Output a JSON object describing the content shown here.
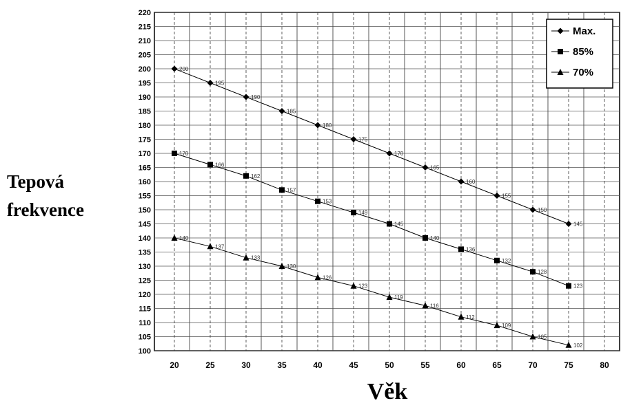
{
  "chart_data": {
    "type": "line",
    "title": "",
    "xlabel": "Věk",
    "ylabel": [
      "Tepová",
      "frekvence"
    ],
    "x": [
      20,
      25,
      30,
      35,
      40,
      45,
      50,
      55,
      60,
      65,
      70,
      75
    ],
    "xlim": [
      20,
      80
    ],
    "xticks": [
      20,
      25,
      30,
      35,
      40,
      45,
      50,
      55,
      60,
      65,
      70,
      75,
      80
    ],
    "ylim": [
      100,
      220
    ],
    "ytick_step": 5,
    "grid": true,
    "legend_position": "top-right",
    "series": [
      {
        "name": "Max.",
        "marker": "diamond",
        "values": [
          200,
          195,
          190,
          185,
          180,
          175,
          170,
          165,
          160,
          155,
          150,
          145
        ]
      },
      {
        "name": "85%",
        "marker": "square",
        "values": [
          170,
          166,
          162,
          157,
          153,
          149,
          145,
          140,
          136,
          132,
          128,
          123
        ]
      },
      {
        "name": "70%",
        "marker": "triangle",
        "values": [
          140,
          137,
          133,
          130,
          126,
          123,
          119,
          116,
          112,
          109,
          105,
          102
        ]
      }
    ]
  }
}
